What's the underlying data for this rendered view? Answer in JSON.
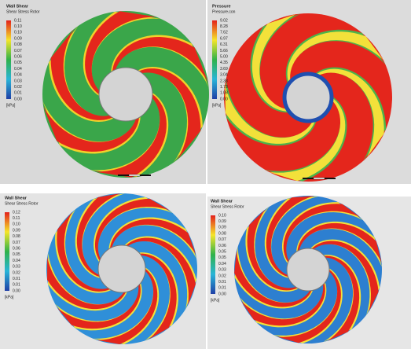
{
  "panels": [
    {
      "legend": {
        "title": "Wall Shear",
        "subtitle": "Shear Stress Rotor",
        "values": [
          "0.11",
          "0.10",
          "0.10",
          "0.09",
          "0.08",
          "0.07",
          "0.06",
          "0.05",
          "0.04",
          "0.04",
          "0.03",
          "0.02",
          "0.01",
          "0.00"
        ],
        "unit": "[kPa]"
      }
    },
    {
      "legend": {
        "title": "Pressure",
        "subtitle": "Pressure.con",
        "values": [
          "9.02",
          "8.28",
          "7.62",
          "6.97",
          "6.31",
          "5.66",
          "5.00",
          "4.35",
          "3.69",
          "3.04",
          "2.38",
          "1.73",
          "1.08",
          "0.00"
        ],
        "unit": "[kPa]"
      }
    },
    {
      "legend": {
        "title": "Wall Shear",
        "subtitle": "Shear Stress Rotor",
        "values": [
          "0.12",
          "0.11",
          "0.10",
          "0.09",
          "0.08",
          "0.07",
          "0.06",
          "0.05",
          "0.04",
          "0.03",
          "0.02",
          "0.01",
          "0.01",
          "0.00"
        ],
        "unit": "[kPa]"
      }
    },
    {
      "legend": {
        "title": "Wall Shear",
        "subtitle": "Shear Stress Rotor",
        "values": [
          "0.10",
          "0.09",
          "0.09",
          "0.08",
          "0.07",
          "0.06",
          "0.05",
          "0.05",
          "0.04",
          "0.03",
          "0.02",
          "0.01",
          "0.01",
          "0.00"
        ],
        "unit": "[kPa]"
      }
    }
  ]
}
